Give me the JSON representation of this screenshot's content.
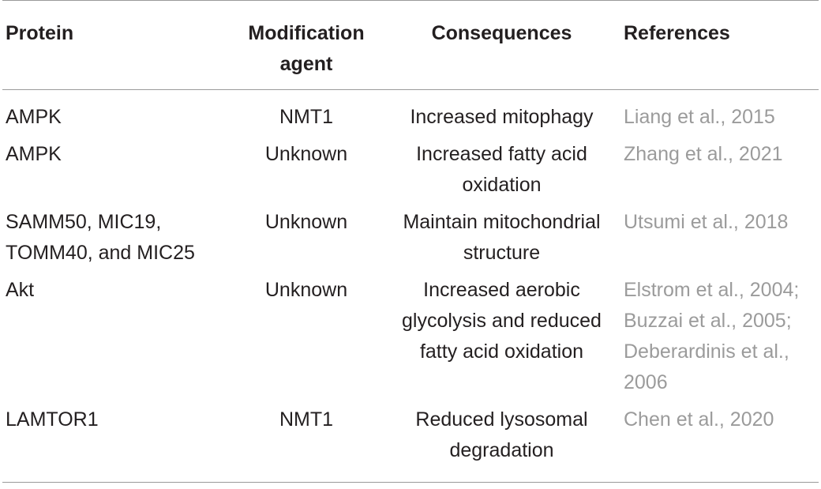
{
  "table": {
    "headers": {
      "protein": "Protein",
      "agent": "Modification agent",
      "consequences": "Consequences",
      "references": "References"
    },
    "rows": [
      {
        "protein": "AMPK",
        "agent": "NMT1",
        "consequences": "Increased mitophagy",
        "references": "Liang et al., 2015"
      },
      {
        "protein": "AMPK",
        "agent": "Unknown",
        "consequences": "Increased fatty acid oxidation",
        "references": "Zhang et al., 2021"
      },
      {
        "protein": "SAMM50, MIC19, TOMM40, and MIC25",
        "agent": "Unknown",
        "consequences": "Maintain mitochondrial structure",
        "references": "Utsumi et al., 2018"
      },
      {
        "protein": "Akt",
        "agent": "Unknown",
        "consequences": "Increased aerobic glycolysis and reduced fatty acid oxidation",
        "references": "Elstrom et al., 2004; Buzzai et al., 2005; Deberardinis et al., 2006"
      },
      {
        "protein": "LAMTOR1",
        "agent": "NMT1",
        "consequences": "Reduced lysosomal degradation",
        "references": "Chen et al., 2020"
      }
    ]
  }
}
